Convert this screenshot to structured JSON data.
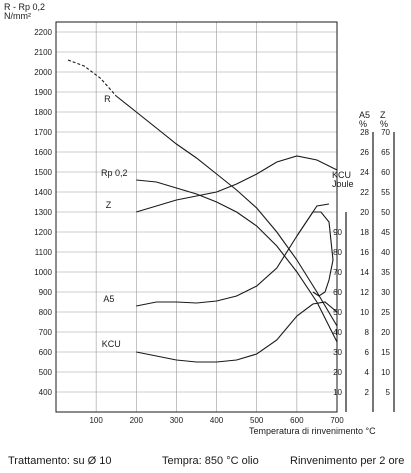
{
  "chart_data": {
    "type": "line",
    "y_left_label": [
      "R - Rp 0,2",
      "N/mm²"
    ],
    "x_label": "Temperatura di rinvenimento °C",
    "x_ticks": [
      100,
      200,
      300,
      400,
      500,
      600,
      700
    ],
    "xlim": [
      0,
      700
    ],
    "y_ticks": [
      400,
      500,
      600,
      700,
      800,
      900,
      1000,
      1100,
      1200,
      1300,
      1400,
      1500,
      1600,
      1700,
      1800,
      1900,
      2000,
      2100,
      2200
    ],
    "ylim": [
      300,
      2250
    ],
    "grid": true,
    "right_axes": [
      {
        "id": "kcu",
        "label": [
          "KCU",
          "Joule"
        ],
        "ticks": [
          10,
          20,
          30,
          40,
          50,
          60,
          70,
          80,
          90
        ],
        "ref": [
          [
            0,
            300
          ],
          [
            100,
            1300
          ]
        ]
      },
      {
        "id": "a5",
        "label": [
          "A5",
          "%"
        ],
        "ticks": [
          2,
          4,
          6,
          8,
          10,
          12,
          14,
          16,
          18,
          20,
          22,
          24,
          26,
          28
        ],
        "ref": [
          [
            0,
            300
          ],
          [
            28,
            1700
          ]
        ]
      },
      {
        "id": "z",
        "label": [
          "Z",
          "%"
        ],
        "ticks": [
          5,
          10,
          15,
          20,
          25,
          30,
          35,
          40,
          45,
          50,
          55,
          60,
          65,
          70
        ],
        "ref": [
          [
            0,
            300
          ],
          [
            70,
            1700
          ]
        ]
      }
    ],
    "series": [
      {
        "name": "R",
        "dashed_until": 150,
        "points": [
          [
            30,
            2060
          ],
          [
            70,
            2030
          ],
          [
            110,
            1970
          ],
          [
            150,
            1880
          ],
          [
            200,
            1800
          ],
          [
            250,
            1720
          ],
          [
            300,
            1640
          ],
          [
            350,
            1570
          ],
          [
            400,
            1490
          ],
          [
            450,
            1410
          ],
          [
            500,
            1320
          ],
          [
            550,
            1200
          ],
          [
            600,
            1060
          ],
          [
            650,
            900
          ],
          [
            700,
            730
          ]
        ]
      },
      {
        "name": "Rp 0,2",
        "points": [
          [
            200,
            1460
          ],
          [
            250,
            1450
          ],
          [
            300,
            1420
          ],
          [
            350,
            1390
          ],
          [
            400,
            1350
          ],
          [
            450,
            1300
          ],
          [
            500,
            1230
          ],
          [
            550,
            1130
          ],
          [
            600,
            1000
          ],
          [
            650,
            850
          ],
          [
            700,
            650
          ]
        ]
      },
      {
        "name": "Z",
        "points": [
          [
            200,
            1300
          ],
          [
            250,
            1330
          ],
          [
            300,
            1360
          ],
          [
            350,
            1380
          ],
          [
            400,
            1400
          ],
          [
            450,
            1440
          ],
          [
            500,
            1490
          ],
          [
            550,
            1550
          ],
          [
            600,
            1580
          ],
          [
            650,
            1560
          ],
          [
            700,
            1510
          ]
        ]
      },
      {
        "name": "A5",
        "points": [
          [
            200,
            830
          ],
          [
            250,
            850
          ],
          [
            300,
            850
          ],
          [
            350,
            845
          ],
          [
            400,
            855
          ],
          [
            450,
            880
          ],
          [
            500,
            930
          ],
          [
            550,
            1020
          ],
          [
            600,
            1180
          ],
          [
            650,
            1330
          ],
          [
            680,
            1340
          ]
        ]
      },
      {
        "name": "KCU",
        "points": [
          [
            200,
            600
          ],
          [
            250,
            580
          ],
          [
            300,
            560
          ],
          [
            350,
            550
          ],
          [
            400,
            550
          ],
          [
            450,
            560
          ],
          [
            500,
            590
          ],
          [
            550,
            660
          ],
          [
            600,
            780
          ],
          [
            640,
            840
          ],
          [
            670,
            850
          ],
          [
            700,
            800
          ]
        ]
      },
      {
        "name": "KCU-tail",
        "points": [
          [
            600,
            1180
          ],
          [
            640,
            1300
          ],
          [
            660,
            1300
          ],
          [
            680,
            1250
          ],
          [
            690,
            1060
          ],
          [
            680,
            960
          ],
          [
            670,
            900
          ],
          [
            655,
            880
          ],
          [
            640,
            900
          ]
        ]
      }
    ],
    "annotations": {
      "R": "R",
      "Rp": "Rp 0,2",
      "Z": "Z",
      "A5": "A5",
      "KCU": "KCU"
    }
  },
  "footer": {
    "left": "Trattamento: su Ø 10",
    "center": "Tempra: 850 °C olio",
    "right": "Rinvenimento per 2 ore"
  }
}
